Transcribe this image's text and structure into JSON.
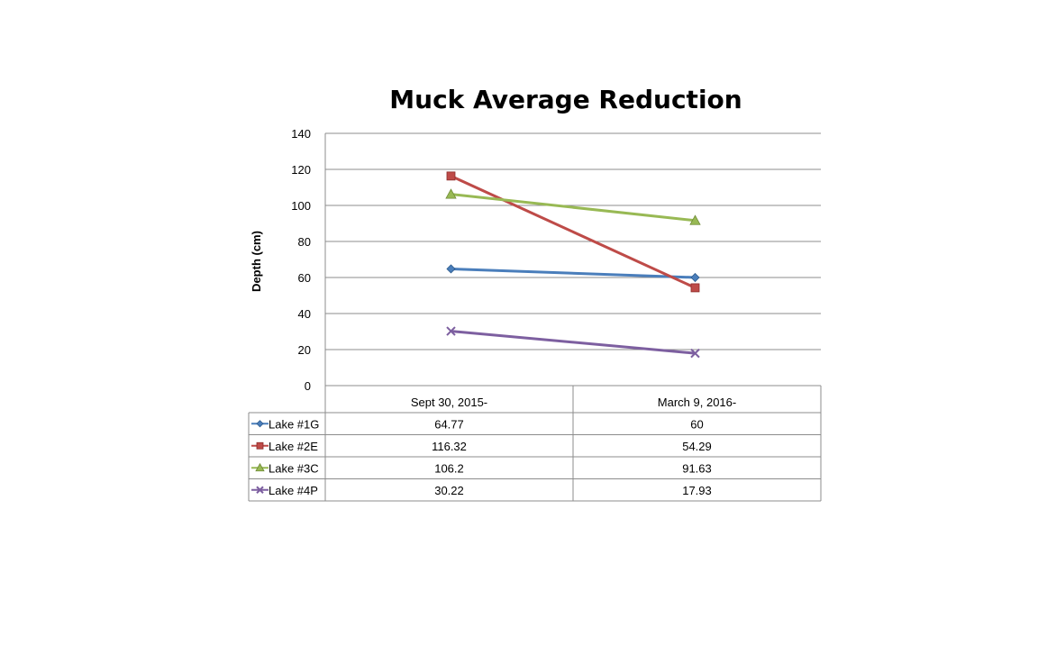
{
  "chart_data": {
    "type": "line",
    "title": "Muck Average Reduction",
    "xlabel": "",
    "ylabel": "Depth (cm)",
    "ylim": [
      0,
      140
    ],
    "yticks": [
      0,
      20,
      40,
      60,
      80,
      100,
      120,
      140
    ],
    "grid": true,
    "legend": "data table below plot",
    "categories": [
      "Sept 30, 2015-",
      "March 9, 2016-"
    ],
    "series": [
      {
        "name": "Lake #1G",
        "values": [
          64.77,
          60
        ],
        "labels": [
          "64.77",
          "60"
        ],
        "color": "#4a7ebb",
        "marker": "diamond"
      },
      {
        "name": "Lake #2E",
        "values": [
          116.32,
          54.29
        ],
        "labels": [
          "116.32",
          "54.29"
        ],
        "color": "#be4b48",
        "marker": "square"
      },
      {
        "name": "Lake #3C",
        "values": [
          106.2,
          91.63
        ],
        "labels": [
          "106.2",
          "91.63"
        ],
        "color": "#98b954",
        "marker": "triangle"
      },
      {
        "name": "Lake #4P",
        "values": [
          30.22,
          17.93
        ],
        "labels": [
          "30.22",
          "17.93"
        ],
        "color": "#7d5fa0",
        "marker": "x"
      }
    ]
  }
}
